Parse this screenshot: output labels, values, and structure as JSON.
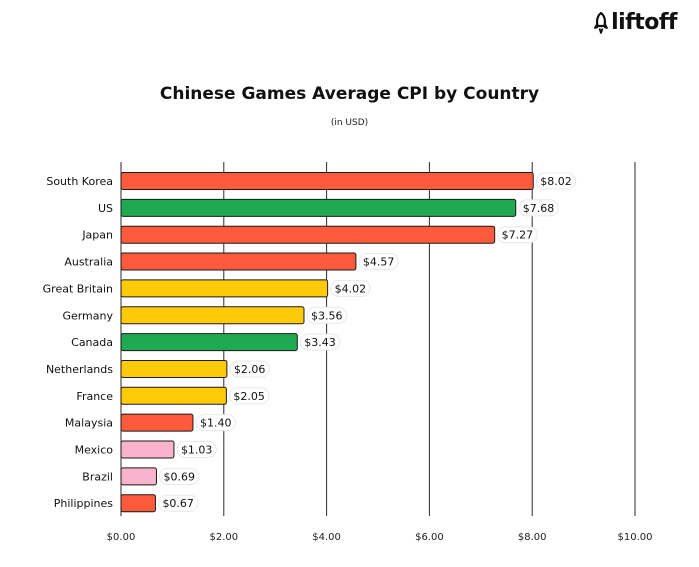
{
  "brand": {
    "name": "liftoff",
    "icon": "rocket-icon"
  },
  "chart_data": {
    "type": "bar",
    "orientation": "horizontal",
    "title": "Chinese Games Average CPI by Country",
    "subtitle": "(in USD)",
    "categories": [
      "South Korea",
      "US",
      "Japan",
      "Australia",
      "Great Britain",
      "Germany",
      "Canada",
      "Netherlands",
      "France",
      "Malaysia",
      "Mexico",
      "Brazil",
      "Philippines"
    ],
    "values": [
      8.02,
      7.68,
      7.27,
      4.57,
      4.02,
      3.56,
      3.43,
      2.06,
      2.05,
      1.4,
      1.03,
      0.69,
      0.67
    ],
    "value_labels": [
      "$8.02",
      "$7.68",
      "$7.27",
      "$4.57",
      "$4.02",
      "$3.56",
      "$3.43",
      "$2.06",
      "$2.05",
      "$1.40",
      "$1.03",
      "$0.69",
      "$0.67"
    ],
    "bar_colors": [
      "#FF5A3C",
      "#20A950",
      "#FF5A3C",
      "#FF5A3C",
      "#FFCA0A",
      "#FFCA0A",
      "#20A950",
      "#FFCA0A",
      "#FFCA0A",
      "#FF5A3C",
      "#F8B4CC",
      "#F8B4CC",
      "#FF5A3C"
    ],
    "xlim": [
      0,
      10
    ],
    "x_ticks": [
      0,
      2,
      4,
      6,
      8,
      10
    ],
    "x_tick_labels": [
      "$0.00",
      "$2.00",
      "$4.00",
      "$6.00",
      "$8.00",
      "$10.00"
    ],
    "grid": true,
    "legend": "none"
  }
}
